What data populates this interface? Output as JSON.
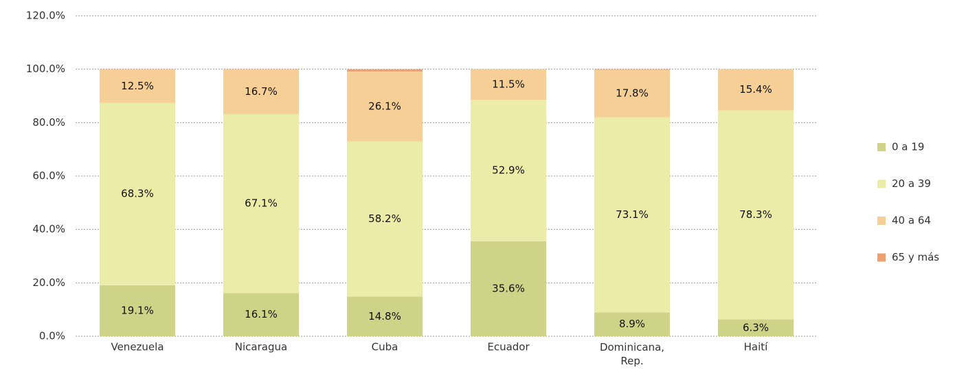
{
  "chart_data": {
    "type": "stacked_bar",
    "categories": [
      "Venezuela",
      "Nicaragua",
      "Cuba",
      "Ecuador",
      "Dominicana, Rep.",
      "Haití"
    ],
    "series": [
      {
        "name": "0 a 19",
        "color": "#cdd387",
        "values": [
          19.1,
          16.1,
          14.8,
          35.6,
          8.9,
          6.3
        ],
        "value_labels": [
          "19.1%",
          "16.1%",
          "14.8%",
          "35.6%",
          "8.9%",
          "6.3%"
        ]
      },
      {
        "name": "20 a 39",
        "color": "#ebeca8",
        "values": [
          68.3,
          67.1,
          58.2,
          52.9,
          73.1,
          78.3
        ],
        "value_labels": [
          "68.3%",
          "67.1%",
          "58.2%",
          "52.9%",
          "73.1%",
          "78.3%"
        ]
      },
      {
        "name": "40 a 64",
        "color": "#f5cf96",
        "values": [
          12.5,
          16.7,
          26.1,
          11.5,
          17.8,
          15.4
        ],
        "value_labels": [
          "12.5%",
          "16.7%",
          "26.1%",
          "11.5%",
          "17.8%",
          "15.4%"
        ]
      },
      {
        "name": "65 y más",
        "color": "#f0a070",
        "values": [
          0.1,
          0.1,
          0.9,
          0,
          0.2,
          0
        ]
      }
    ],
    "ylim": [
      0,
      120
    ],
    "yticks": [
      {
        "value": 0,
        "label": "0.0%"
      },
      {
        "value": 20,
        "label": "20.0%"
      },
      {
        "value": 40,
        "label": "40.0%"
      },
      {
        "value": 60,
        "label": "60.0%"
      },
      {
        "value": 80,
        "label": "80.0%"
      },
      {
        "value": 100,
        "label": "100.0%"
      },
      {
        "value": 120,
        "label": "120.0%"
      }
    ],
    "grid": true,
    "legend": "right"
  }
}
